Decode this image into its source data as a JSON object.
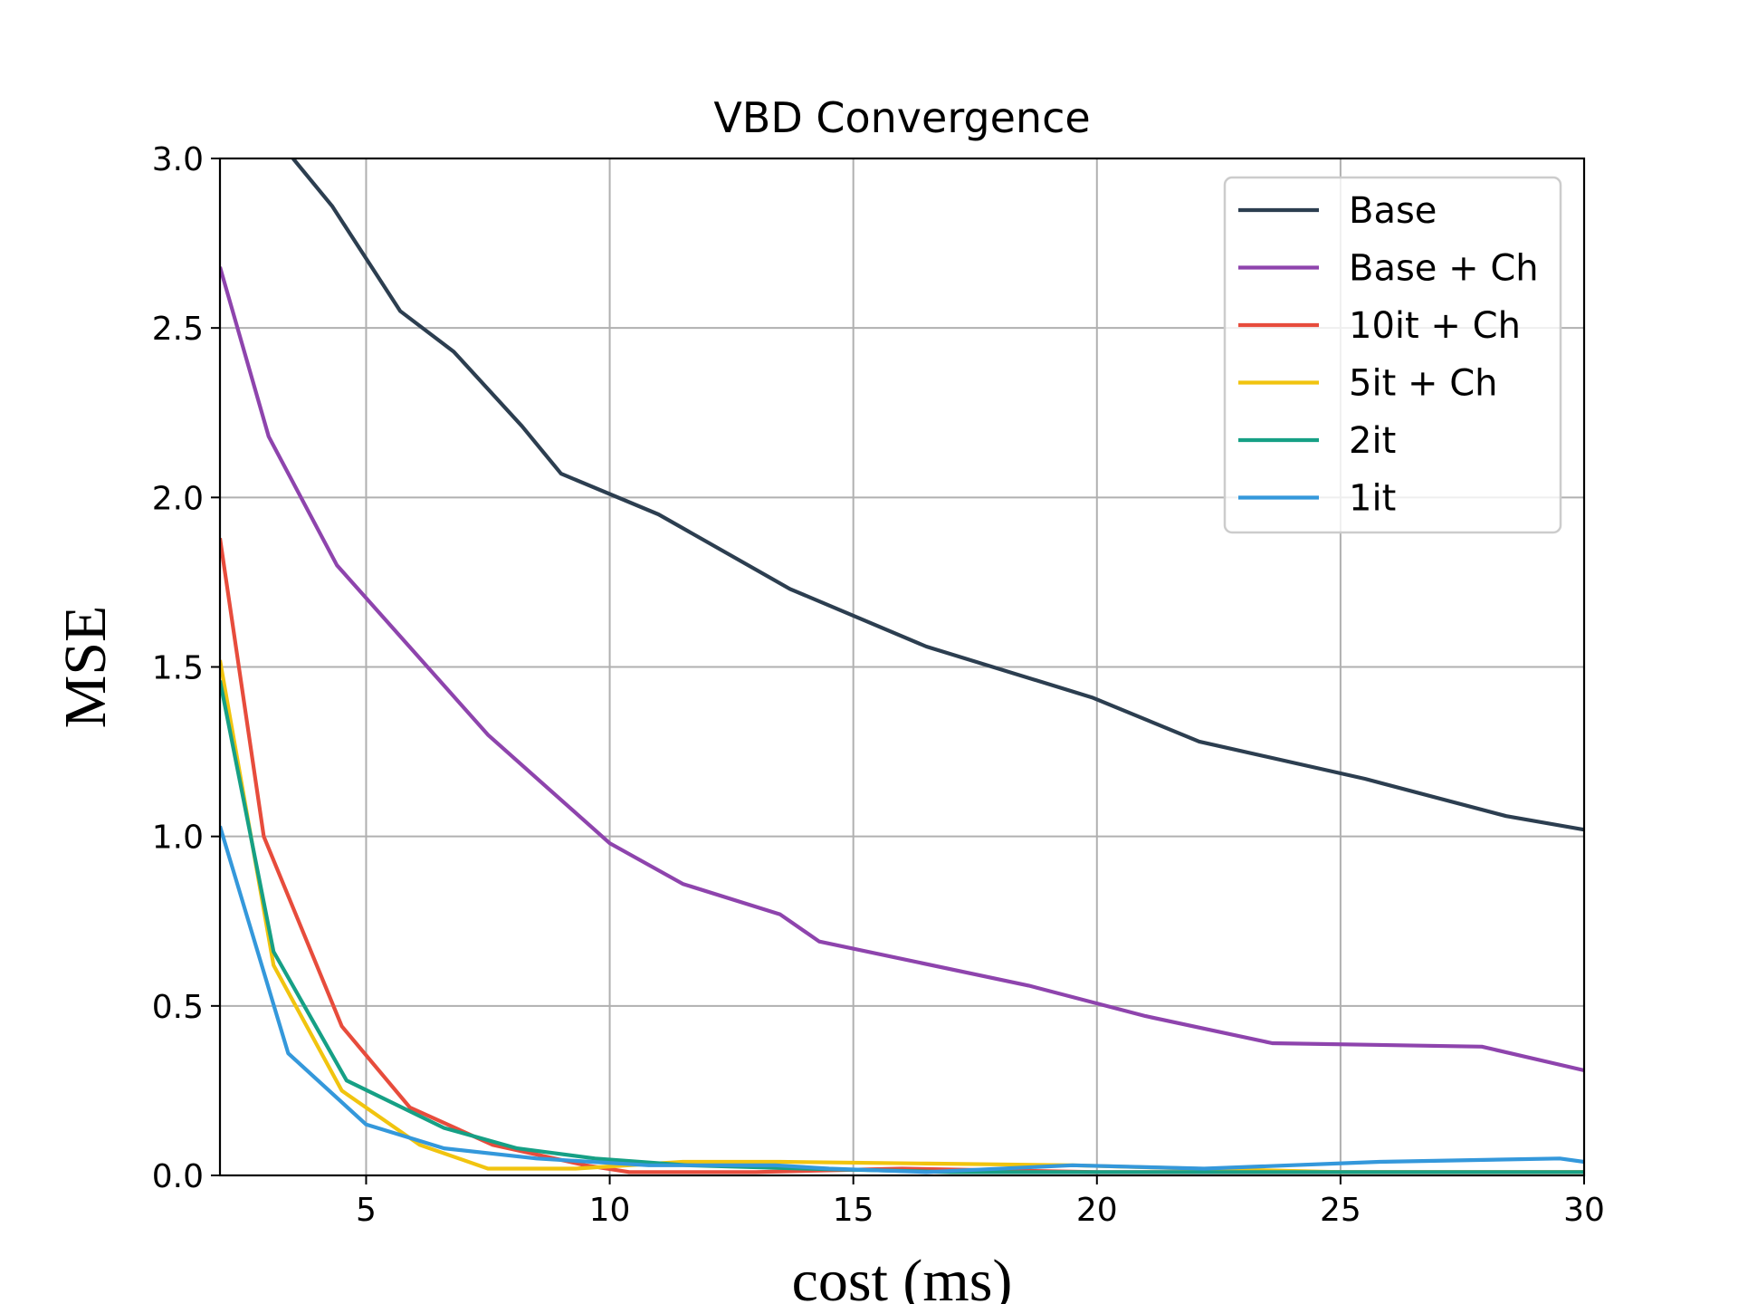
{
  "chart_data": {
    "type": "line",
    "title": "VBD Convergence",
    "xlabel": "cost (ms)",
    "ylabel": "MSE",
    "xlim": [
      2,
      30
    ],
    "ylim": [
      0,
      3.0
    ],
    "xticks": [
      5,
      10,
      15,
      20,
      25,
      30
    ],
    "xtick_labels": [
      "5",
      "10",
      "15",
      "20",
      "25",
      "30"
    ],
    "yticks": [
      0,
      0.5,
      1.0,
      1.5,
      2.0,
      2.5,
      3.0
    ],
    "ytick_labels": [
      "0.0",
      "0.5",
      "1.0",
      "1.5",
      "2.0",
      "2.5",
      "3.0"
    ],
    "grid": true,
    "legend_position": "top-right",
    "series": [
      {
        "name": "Base",
        "color": "#2c3e50",
        "x": [
          3.5,
          4.3,
          5.7,
          6.8,
          8.2,
          9.0,
          11.0,
          13.7,
          16.5,
          19.9,
          22.1,
          25.5,
          28.4,
          30.0
        ],
        "y": [
          3.0,
          2.86,
          2.55,
          2.43,
          2.21,
          2.07,
          1.95,
          1.73,
          1.56,
          1.41,
          1.28,
          1.17,
          1.06,
          1.02
        ]
      },
      {
        "name": "Base + Ch",
        "color": "#8e44ad",
        "x": [
          2.0,
          3.0,
          4.4,
          7.5,
          10.0,
          11.5,
          13.5,
          14.3,
          18.6,
          21.0,
          23.6,
          27.9,
          30.0
        ],
        "y": [
          2.68,
          2.18,
          1.8,
          1.3,
          0.98,
          0.86,
          0.77,
          0.69,
          0.56,
          0.47,
          0.39,
          0.38,
          0.31
        ]
      },
      {
        "name": "10it + Ch",
        "color": "#e74c3c",
        "x": [
          2.0,
          2.9,
          4.5,
          5.9,
          7.6,
          9.5,
          10.4,
          13.0,
          16.0,
          20.0,
          25.0,
          30.0
        ],
        "y": [
          1.88,
          1.0,
          0.44,
          0.2,
          0.09,
          0.03,
          0.01,
          0.01,
          0.02,
          0.01,
          0.01,
          0.01
        ]
      },
      {
        "name": "5it + Ch",
        "color": "#f1c40f",
        "x": [
          2.0,
          3.1,
          4.5,
          6.1,
          7.5,
          9.3,
          11.5,
          13.5,
          16.5,
          19.5,
          22.0,
          25.0,
          30.0
        ],
        "y": [
          1.52,
          0.62,
          0.25,
          0.09,
          0.02,
          0.02,
          0.04,
          0.04,
          0.035,
          0.03,
          0.02,
          0.01,
          0.01
        ]
      },
      {
        "name": "2it",
        "color": "#16a085",
        "x": [
          2.0,
          3.1,
          4.6,
          6.6,
          8.1,
          9.7,
          11.6,
          14.0,
          17.0,
          20.0,
          25.0,
          30.0
        ],
        "y": [
          1.46,
          0.66,
          0.28,
          0.14,
          0.08,
          0.05,
          0.03,
          0.02,
          0.01,
          0.01,
          0.01,
          0.01
        ]
      },
      {
        "name": "1it",
        "color": "#3498db",
        "x": [
          2.0,
          3.4,
          5.0,
          6.6,
          8.5,
          10.8,
          13.4,
          14.5,
          16.5,
          19.5,
          22.2,
          25.8,
          29.5,
          30.0
        ],
        "y": [
          1.03,
          0.36,
          0.15,
          0.08,
          0.05,
          0.03,
          0.03,
          0.02,
          0.01,
          0.03,
          0.02,
          0.04,
          0.05,
          0.04
        ]
      }
    ]
  }
}
